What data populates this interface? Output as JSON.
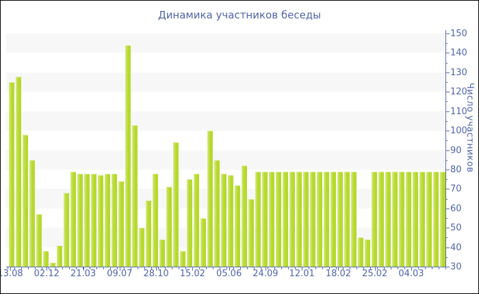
{
  "title": "Динамика участников беседы",
  "colors": {
    "text": "#5064a8",
    "axis": "#5a6db0",
    "bar": "#b7d92e",
    "bar_edge_light": "#cde76b",
    "band_gray": "#f7f7f7",
    "band_white": "#ffffff"
  },
  "chart_data": {
    "type": "bar",
    "title": "Динамика участников беседы",
    "ylabel": "Число участников",
    "xlabel": "",
    "ylim": [
      30,
      150
    ],
    "y_tick_step": 10,
    "y_ticks": [
      30,
      40,
      50,
      60,
      70,
      80,
      90,
      100,
      110,
      120,
      130,
      140,
      150
    ],
    "grid": "alternating horizontal bands",
    "legend": "none",
    "x_tick_labels": [
      "13.08",
      "02.12",
      "21.03",
      "09.07",
      "28.10",
      "15.02",
      "05.06",
      "24.09",
      "12.01",
      "18.02",
      "25.02",
      "04.03"
    ],
    "values": [
      125,
      128,
      98,
      85,
      57,
      38,
      32,
      41,
      68,
      79,
      78,
      78,
      78,
      77,
      78,
      78,
      74,
      144,
      103,
      50,
      64,
      78,
      44,
      71,
      94,
      38,
      75,
      78,
      55,
      100,
      85,
      78,
      77,
      72,
      82,
      65,
      79,
      79,
      79,
      79,
      79,
      79,
      79,
      79,
      79,
      79,
      79,
      79,
      79,
      79,
      79,
      45,
      44,
      79,
      79,
      79,
      79,
      79,
      79,
      79,
      79,
      79,
      79,
      79
    ]
  }
}
